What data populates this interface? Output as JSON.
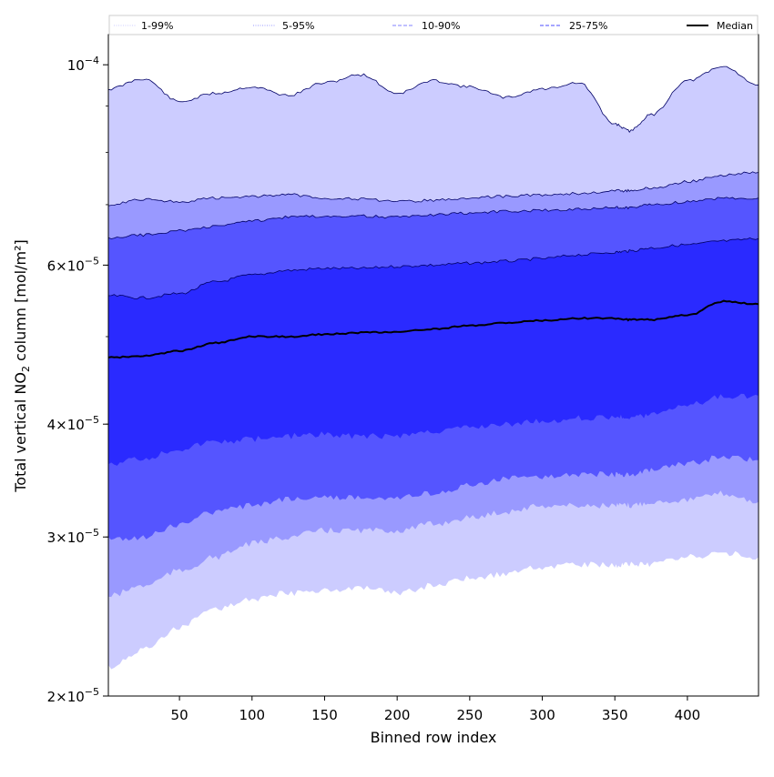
{
  "chart_data": {
    "type": "area",
    "title": "",
    "xlabel": "Binned row index",
    "ylabel_main": "Total vertical NO",
    "ylabel_sub": "2",
    "ylabel_tail": " column [mol/m²]",
    "yscale": "log",
    "xlim": [
      1,
      449
    ],
    "ylim": [
      2e-05,
      0.000108
    ],
    "x_ticks": [
      50,
      100,
      150,
      200,
      250,
      300,
      350,
      400
    ],
    "y_ticks": [
      {
        "value": 0.0001,
        "base": "10",
        "exp": "−4",
        "mant": ""
      },
      {
        "value": 6e-05,
        "base": "10",
        "exp": "−5",
        "mant": "6"
      },
      {
        "value": 4e-05,
        "base": "10",
        "exp": "−5",
        "mant": "4"
      },
      {
        "value": 3e-05,
        "base": "10",
        "exp": "−5",
        "mant": "3"
      },
      {
        "value": 2e-05,
        "base": "10",
        "exp": "−5",
        "mant": "2"
      }
    ],
    "x": [
      1,
      25,
      50,
      75,
      100,
      125,
      150,
      175,
      200,
      225,
      250,
      275,
      300,
      325,
      350,
      360,
      375,
      400,
      425,
      449
    ],
    "bands": [
      {
        "name": "1-99%",
        "fill": "#ccccff",
        "lower": [
          2.15e-05,
          2.25e-05,
          2.38e-05,
          2.5e-05,
          2.56e-05,
          2.6e-05,
          2.62e-05,
          2.63e-05,
          2.6e-05,
          2.65e-05,
          2.7e-05,
          2.73e-05,
          2.78e-05,
          2.8e-05,
          2.79e-05,
          2.8e-05,
          2.8e-05,
          2.85e-05,
          2.88e-05,
          2.85e-05
        ],
        "upper": [
          9.4e-05,
          9.65e-05,
          9.1e-05,
          9.3e-05,
          9.45e-05,
          9.25e-05,
          9.55e-05,
          9.75e-05,
          9.3e-05,
          9.6e-05,
          9.45e-05,
          9.2e-05,
          9.4e-05,
          9.55e-05,
          8.6e-05,
          8.45e-05,
          8.8e-05,
          9.6e-05,
          9.95e-05,
          9.5e-05
        ]
      },
      {
        "name": "5-95%",
        "fill": "#9999ff",
        "lower": [
          2.58e-05,
          2.65e-05,
          2.75e-05,
          2.85e-05,
          2.95e-05,
          3e-05,
          3.05e-05,
          3.05e-05,
          3.05e-05,
          3.1e-05,
          3.15e-05,
          3.2e-05,
          3.25e-05,
          3.25e-05,
          3.25e-05,
          3.25e-05,
          3.28e-05,
          3.3e-05,
          3.35e-05,
          3.28e-05
        ],
        "upper": [
          7e-05,
          7.1e-05,
          7.05e-05,
          7.12e-05,
          7.15e-05,
          7.18e-05,
          7.12e-05,
          7.1e-05,
          7.05e-05,
          7.08e-05,
          7.12e-05,
          7.15e-05,
          7.18e-05,
          7.2e-05,
          7.25e-05,
          7.25e-05,
          7.3e-05,
          7.42e-05,
          7.55e-05,
          7.6e-05
        ]
      },
      {
        "name": "10-90%",
        "fill": "#5555ff",
        "lower": [
          2.98e-05,
          3e-05,
          3.1e-05,
          3.2e-05,
          3.25e-05,
          3.3e-05,
          3.32e-05,
          3.32e-05,
          3.32e-05,
          3.35e-05,
          3.42e-05,
          3.48e-05,
          3.5e-05,
          3.52e-05,
          3.52e-05,
          3.52e-05,
          3.55e-05,
          3.62e-05,
          3.68e-05,
          3.65e-05
        ],
        "upper": [
          6.42e-05,
          6.48e-05,
          6.55e-05,
          6.62e-05,
          6.72e-05,
          6.78e-05,
          6.8e-05,
          6.8e-05,
          6.78e-05,
          6.82e-05,
          6.85e-05,
          6.88e-05,
          6.9e-05,
          6.92e-05,
          6.95e-05,
          6.95e-05,
          7e-05,
          7.05e-05,
          7.12e-05,
          7.12e-05
        ]
      },
      {
        "name": "25-75%",
        "fill": "#2a2aff",
        "lower": [
          3.62e-05,
          3.66e-05,
          3.75e-05,
          3.82e-05,
          3.85e-05,
          3.88e-05,
          3.9e-05,
          3.88e-05,
          3.88e-05,
          3.92e-05,
          3.96e-05,
          4e-05,
          4.03e-05,
          4.06e-05,
          4.07e-05,
          4.07e-05,
          4.1e-05,
          4.2e-05,
          4.3e-05,
          4.3e-05
        ],
        "upper": [
          5.55e-05,
          5.52e-05,
          5.58e-05,
          5.75e-05,
          5.85e-05,
          5.92e-05,
          5.95e-05,
          5.95e-05,
          5.98e-05,
          6e-05,
          6.03e-05,
          6.06e-05,
          6.1e-05,
          6.16e-05,
          6.2e-05,
          6.22e-05,
          6.27e-05,
          6.32e-05,
          6.38e-05,
          6.42e-05
        ]
      }
    ],
    "median": {
      "name": "Median",
      "color": "#000000",
      "values": [
        4.74e-05,
        4.76e-05,
        4.82e-05,
        4.92e-05,
        5e-05,
        5e-05,
        5.03e-05,
        5.05e-05,
        5.06e-05,
        5.1e-05,
        5.14e-05,
        5.18e-05,
        5.21e-05,
        5.24e-05,
        5.24e-05,
        5.22e-05,
        5.22e-05,
        5.28e-05,
        5.47e-05,
        5.43e-05
      ]
    },
    "legend": {
      "position": "top",
      "entries": [
        {
          "label": "1-99%",
          "color": "#ccccff",
          "style": "dotted"
        },
        {
          "label": "5-95%",
          "color": "#9999ff",
          "style": "dotted"
        },
        {
          "label": "10-90%",
          "color": "#8080ff",
          "style": "dashed"
        },
        {
          "label": "25-75%",
          "color": "#4d4dff",
          "style": "dashed"
        },
        {
          "label": "Median",
          "color": "#000000",
          "style": "solid"
        }
      ]
    },
    "grid": false
  }
}
